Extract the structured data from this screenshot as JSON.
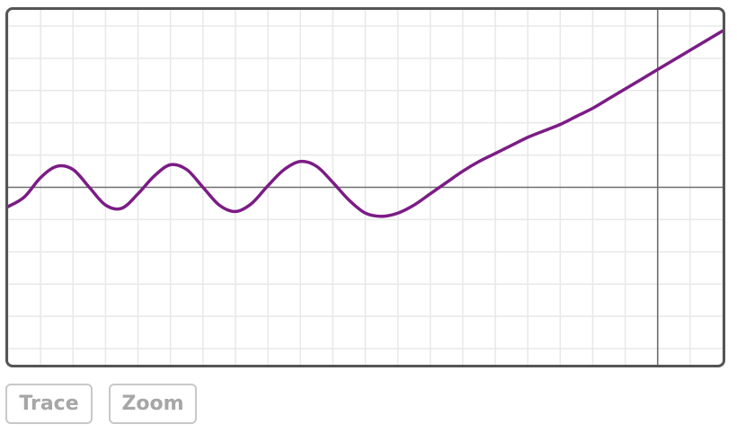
{
  "controls": {
    "trace_label": "Trace",
    "zoom_label": "Zoom"
  },
  "colors": {
    "curve": "#7b1c85",
    "axis": "#6e6e6e",
    "grid": "#e8e8e8",
    "frame": "#555555"
  },
  "chart_data": {
    "type": "line",
    "title": "",
    "xlabel": "",
    "ylabel": "",
    "grid": true,
    "xlim": [
      -20,
      2
    ],
    "ylim": [
      -5.5,
      5.5
    ],
    "x_grid_step": 1,
    "y_grid_step": 1,
    "series": [
      {
        "x": [
          -20,
          -19.5,
          -19,
          -18.5,
          -18,
          -17.5,
          -17,
          -16.5,
          -16,
          -15.5,
          -15,
          -14.5,
          -14,
          -13.5,
          -13,
          -12.5,
          -12,
          -11.5,
          -11,
          -10.5,
          -10,
          -9.5,
          -9,
          -8.5,
          -8,
          -7.5,
          -7,
          -6.5,
          -6,
          -5.5,
          -5,
          -4.5,
          -4,
          -3.5,
          -3,
          -2.5,
          -2,
          -1.5,
          -1,
          -0.5,
          0,
          0.5,
          1,
          1.5,
          2
        ],
        "y": [
          -0.6,
          -0.3,
          0.3,
          0.65,
          0.55,
          0.0,
          -0.55,
          -0.65,
          -0.2,
          0.35,
          0.7,
          0.55,
          0.0,
          -0.55,
          -0.75,
          -0.5,
          0.05,
          0.55,
          0.8,
          0.65,
          0.15,
          -0.4,
          -0.8,
          -0.9,
          -0.8,
          -0.55,
          -0.2,
          0.15,
          0.5,
          0.8,
          1.05,
          1.3,
          1.55,
          1.75,
          1.95,
          2.2,
          2.45,
          2.75,
          3.05,
          3.35,
          3.65,
          3.95,
          4.25,
          4.55,
          4.85
        ]
      }
    ]
  }
}
